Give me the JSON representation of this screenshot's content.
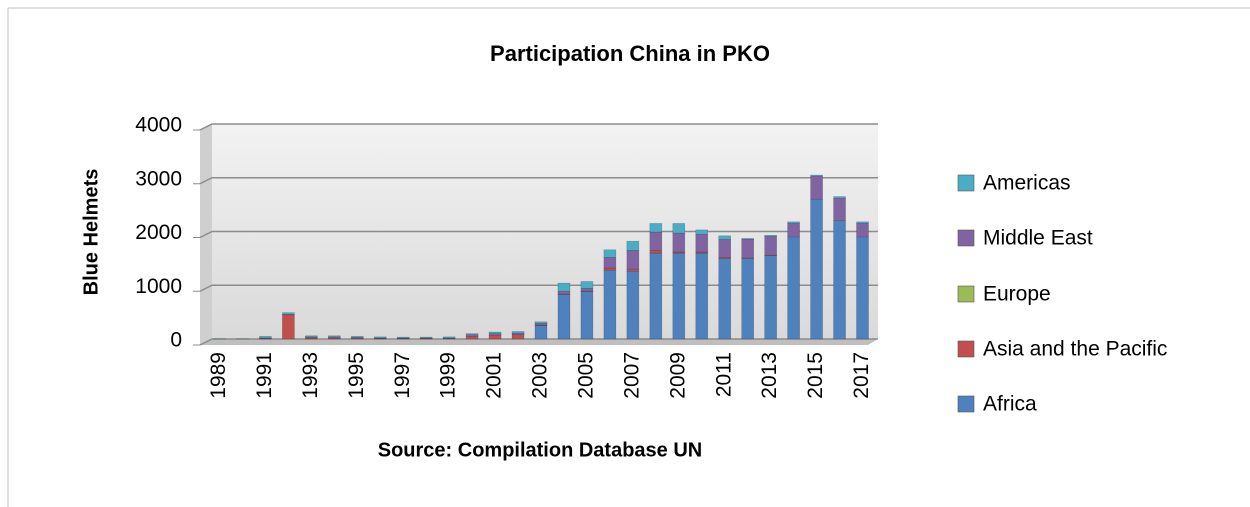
{
  "chart_data": {
    "type": "bar",
    "stacked": true,
    "title": "Participation China in PKO",
    "y_label": "Blue Helmets",
    "x_label": "Source: Compilation Database UN",
    "categories": [
      "1989",
      null,
      "1991",
      null,
      "1993",
      null,
      "1995",
      null,
      "1997",
      null,
      "1999",
      null,
      "2001",
      null,
      "2003",
      null,
      "2005",
      null,
      "2007",
      null,
      "2009",
      null,
      "2011",
      null,
      "2013",
      null,
      "2015",
      null,
      "2017"
    ],
    "series": [
      {
        "name": "Africa",
        "color": "#4f81bd",
        "values": [
          0,
          0,
          0,
          0,
          0,
          0,
          0,
          0,
          0,
          0,
          0,
          0,
          0,
          0,
          250,
          830,
          880,
          1280,
          1260,
          1600,
          1600,
          1600,
          1500,
          1500,
          1550,
          1900,
          2600,
          2200,
          1900
        ]
      },
      {
        "name": "Asia and the Pacific",
        "color": "#c0504d",
        "values": [
          0,
          0,
          10,
          450,
          20,
          20,
          15,
          10,
          10,
          10,
          10,
          50,
          70,
          80,
          10,
          10,
          10,
          40,
          40,
          50,
          20,
          20,
          20,
          10,
          10,
          0,
          0,
          0,
          0
        ]
      },
      {
        "name": "Europe",
        "color": "#9bbb59",
        "values": [
          0,
          0,
          0,
          0,
          0,
          0,
          0,
          0,
          0,
          0,
          0,
          0,
          0,
          0,
          0,
          0,
          0,
          0,
          0,
          0,
          0,
          0,
          0,
          0,
          0,
          0,
          0,
          0,
          0
        ]
      },
      {
        "name": "Middle East",
        "color": "#8064a2",
        "values": [
          0,
          0,
          10,
          10,
          20,
          20,
          15,
          10,
          10,
          10,
          10,
          30,
          30,
          30,
          30,
          50,
          50,
          200,
          350,
          340,
          350,
          330,
          330,
          350,
          350,
          250,
          430,
          420,
          250
        ]
      },
      {
        "name": "Americas",
        "color": "#4bacc6",
        "values": [
          5,
          5,
          30,
          30,
          20,
          20,
          20,
          20,
          15,
          15,
          20,
          20,
          30,
          30,
          30,
          150,
          130,
          140,
          170,
          160,
          180,
          80,
          70,
          10,
          20,
          30,
          20,
          30,
          30
        ]
      }
    ],
    "ylim": [
      0,
      4000
    ],
    "yticks": [
      0,
      1000,
      2000,
      3000,
      4000
    ],
    "grid": true
  }
}
